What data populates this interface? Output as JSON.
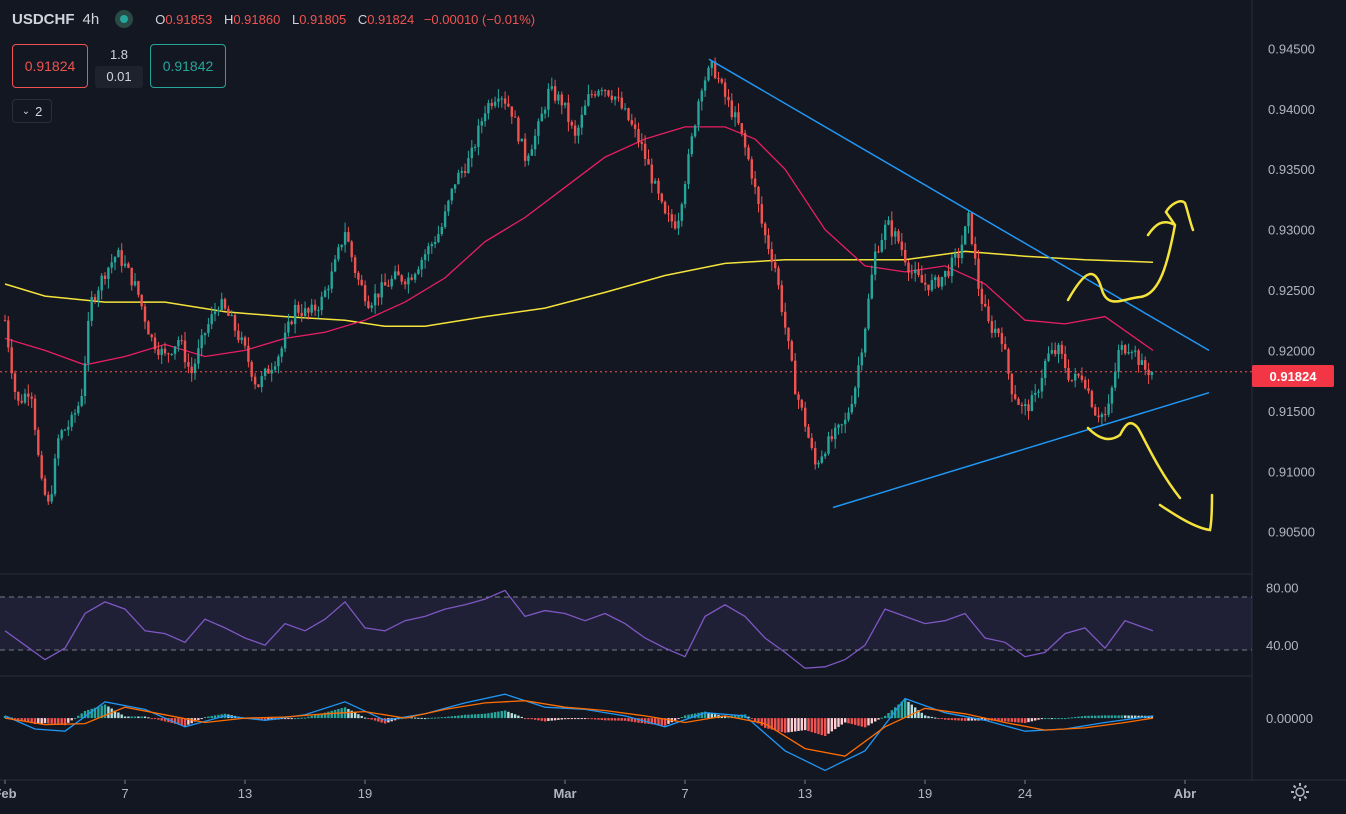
{
  "header": {
    "symbol": "USDCHF",
    "timeframe": "4h",
    "open_label": "O",
    "open": "0.91853",
    "high_label": "H",
    "high": "0.91860",
    "low_label": "L",
    "low": "0.91805",
    "close_label": "C",
    "close": "0.91824",
    "change": "−0.00010 (−0.01%)"
  },
  "trade": {
    "sell_price": "0.91824",
    "buy_price": "0.91842",
    "quantity": "1.8",
    "spread": "0.01"
  },
  "indicators_toggle": {
    "label": "2"
  },
  "colors": {
    "background": "#131722",
    "up": "#26a69a",
    "down": "#ef5350",
    "ma_fast": "#e91e63",
    "ma_slow": "#f5e33b",
    "trendline": "#2196f3",
    "annotation": "#f5e33b",
    "rsi": "#7e57c2",
    "macd": "#2196f3",
    "signal": "#ff6d00"
  },
  "chart_data": [
    {
      "type": "candlestick",
      "symbol": "USDCHF",
      "timeframe": "4h",
      "y_axis_ticks": [
        "0.94500",
        "0.94000",
        "0.93500",
        "0.93000",
        "0.92500",
        "0.92000",
        "0.91500",
        "0.91000",
        "0.90500"
      ],
      "ylim": [
        0.9015,
        0.949
      ],
      "last_price": "0.91824",
      "x_axis_ticks": [
        "Feb",
        "7",
        "13",
        "19",
        "Mar",
        "7",
        "13",
        "19",
        "24",
        "Abr"
      ],
      "x_axis_tick_days": [
        1,
        7,
        13,
        19,
        29,
        35,
        41,
        47,
        52,
        60
      ],
      "xlim": [
        1,
        63.6
      ],
      "close_path": [
        {
          "d": 1,
          "v": 0.9225
        },
        {
          "d": 1.6,
          "v": 0.9155
        },
        {
          "d": 2.3,
          "v": 0.917
        },
        {
          "d": 2.8,
          "v": 0.909
        },
        {
          "d": 3.2,
          "v": 0.907
        },
        {
          "d": 3.7,
          "v": 0.913
        },
        {
          "d": 4.3,
          "v": 0.914
        },
        {
          "d": 4.8,
          "v": 0.916
        },
        {
          "d": 5.3,
          "v": 0.924
        },
        {
          "d": 6,
          "v": 0.9265
        },
        {
          "d": 6.6,
          "v": 0.928
        },
        {
          "d": 7,
          "v": 0.927
        },
        {
          "d": 7.6,
          "v": 0.925
        },
        {
          "d": 8.3,
          "v": 0.921
        },
        {
          "d": 9,
          "v": 0.9195
        },
        {
          "d": 9.7,
          "v": 0.921
        },
        {
          "d": 10.3,
          "v": 0.918
        },
        {
          "d": 11,
          "v": 0.9215
        },
        {
          "d": 11.7,
          "v": 0.924
        },
        {
          "d": 12.3,
          "v": 0.9225
        },
        {
          "d": 13,
          "v": 0.92
        },
        {
          "d": 13.6,
          "v": 0.917
        },
        {
          "d": 14.2,
          "v": 0.9185
        },
        {
          "d": 14.8,
          "v": 0.92
        },
        {
          "d": 15.5,
          "v": 0.9235
        },
        {
          "d": 16.2,
          "v": 0.923
        },
        {
          "d": 16.8,
          "v": 0.924
        },
        {
          "d": 17.4,
          "v": 0.9265
        },
        {
          "d": 18,
          "v": 0.93
        },
        {
          "d": 18.6,
          "v": 0.926
        },
        {
          "d": 19.2,
          "v": 0.924
        },
        {
          "d": 19.8,
          "v": 0.925
        },
        {
          "d": 20.5,
          "v": 0.926
        },
        {
          "d": 21.2,
          "v": 0.926
        },
        {
          "d": 22,
          "v": 0.928
        },
        {
          "d": 22.8,
          "v": 0.93
        },
        {
          "d": 23.5,
          "v": 0.934
        },
        {
          "d": 24.3,
          "v": 0.936
        },
        {
          "d": 25,
          "v": 0.94
        },
        {
          "d": 25.7,
          "v": 0.9415
        },
        {
          "d": 26.3,
          "v": 0.94
        },
        {
          "d": 27,
          "v": 0.936
        },
        {
          "d": 27.6,
          "v": 0.938
        },
        {
          "d": 28.2,
          "v": 0.9415
        },
        {
          "d": 28.9,
          "v": 0.9405
        },
        {
          "d": 29.5,
          "v": 0.9375
        },
        {
          "d": 30.2,
          "v": 0.941
        },
        {
          "d": 30.8,
          "v": 0.942
        },
        {
          "d": 31.5,
          "v": 0.941
        },
        {
          "d": 32.2,
          "v": 0.939
        },
        {
          "d": 32.8,
          "v": 0.937
        },
        {
          "d": 33.4,
          "v": 0.934
        },
        {
          "d": 34,
          "v": 0.931
        },
        {
          "d": 34.6,
          "v": 0.9305
        },
        {
          "d": 35.2,
          "v": 0.936
        },
        {
          "d": 35.8,
          "v": 0.942
        },
        {
          "d": 36.4,
          "v": 0.9435
        },
        {
          "d": 37,
          "v": 0.941
        },
        {
          "d": 37.7,
          "v": 0.9385
        },
        {
          "d": 38.3,
          "v": 0.935
        },
        {
          "d": 38.9,
          "v": 0.93
        },
        {
          "d": 39.5,
          "v": 0.927
        },
        {
          "d": 40,
          "v": 0.922
        },
        {
          "d": 40.5,
          "v": 0.917
        },
        {
          "d": 41,
          "v": 0.914
        },
        {
          "d": 41.5,
          "v": 0.9105
        },
        {
          "d": 42,
          "v": 0.912
        },
        {
          "d": 42.5,
          "v": 0.913
        },
        {
          "d": 43,
          "v": 0.914
        },
        {
          "d": 43.5,
          "v": 0.917
        },
        {
          "d": 44,
          "v": 0.922
        },
        {
          "d": 44.5,
          "v": 0.928
        },
        {
          "d": 45.1,
          "v": 0.9305
        },
        {
          "d": 45.7,
          "v": 0.929
        },
        {
          "d": 46.3,
          "v": 0.9265
        },
        {
          "d": 46.9,
          "v": 0.9255
        },
        {
          "d": 47.5,
          "v": 0.9255
        },
        {
          "d": 48.1,
          "v": 0.9265
        },
        {
          "d": 48.7,
          "v": 0.928
        },
        {
          "d": 49.2,
          "v": 0.931
        },
        {
          "d": 49.7,
          "v": 0.925
        },
        {
          "d": 50.2,
          "v": 0.922
        },
        {
          "d": 50.8,
          "v": 0.9215
        },
        {
          "d": 51.3,
          "v": 0.917
        },
        {
          "d": 51.9,
          "v": 0.915
        },
        {
          "d": 52.5,
          "v": 0.916
        },
        {
          "d": 53.1,
          "v": 0.9195
        },
        {
          "d": 53.7,
          "v": 0.92
        },
        {
          "d": 54.3,
          "v": 0.9175
        },
        {
          "d": 54.9,
          "v": 0.918
        },
        {
          "d": 55.5,
          "v": 0.915
        },
        {
          "d": 56.1,
          "v": 0.9145
        },
        {
          "d": 56.7,
          "v": 0.92
        },
        {
          "d": 57.3,
          "v": 0.9205
        },
        {
          "d": 57.9,
          "v": 0.9185
        },
        {
          "d": 58.4,
          "v": 0.9182
        }
      ],
      "moving_average_fast": [
        {
          "d": 1,
          "v": 0.921
        },
        {
          "d": 3,
          "v": 0.92
        },
        {
          "d": 5,
          "v": 0.9188
        },
        {
          "d": 7,
          "v": 0.9195
        },
        {
          "d": 9,
          "v": 0.9205
        },
        {
          "d": 11,
          "v": 0.9195
        },
        {
          "d": 13,
          "v": 0.92
        },
        {
          "d": 15,
          "v": 0.921
        },
        {
          "d": 17,
          "v": 0.9215
        },
        {
          "d": 19,
          "v": 0.9225
        },
        {
          "d": 21,
          "v": 0.924
        },
        {
          "d": 23,
          "v": 0.926
        },
        {
          "d": 25,
          "v": 0.929
        },
        {
          "d": 27,
          "v": 0.931
        },
        {
          "d": 29,
          "v": 0.9335
        },
        {
          "d": 31,
          "v": 0.936
        },
        {
          "d": 33,
          "v": 0.9375
        },
        {
          "d": 35,
          "v": 0.9385
        },
        {
          "d": 37,
          "v": 0.9385
        },
        {
          "d": 38.5,
          "v": 0.9375
        },
        {
          "d": 40,
          "v": 0.935
        },
        {
          "d": 42,
          "v": 0.93
        },
        {
          "d": 44,
          "v": 0.927
        },
        {
          "d": 46,
          "v": 0.9265
        },
        {
          "d": 48,
          "v": 0.927
        },
        {
          "d": 50,
          "v": 0.9255
        },
        {
          "d": 52,
          "v": 0.9225
        },
        {
          "d": 54,
          "v": 0.9222
        },
        {
          "d": 56,
          "v": 0.9228
        },
        {
          "d": 58.4,
          "v": 0.92
        }
      ],
      "moving_average_slow": [
        {
          "d": 1,
          "v": 0.9255
        },
        {
          "d": 3,
          "v": 0.9245
        },
        {
          "d": 6,
          "v": 0.924
        },
        {
          "d": 9,
          "v": 0.924
        },
        {
          "d": 12,
          "v": 0.9232
        },
        {
          "d": 15,
          "v": 0.9228
        },
        {
          "d": 18,
          "v": 0.9225
        },
        {
          "d": 20,
          "v": 0.922
        },
        {
          "d": 22,
          "v": 0.922
        },
        {
          "d": 25,
          "v": 0.9228
        },
        {
          "d": 28,
          "v": 0.9235
        },
        {
          "d": 31,
          "v": 0.9248
        },
        {
          "d": 34,
          "v": 0.9262
        },
        {
          "d": 37,
          "v": 0.9272
        },
        {
          "d": 40,
          "v": 0.9275
        },
        {
          "d": 43,
          "v": 0.9275
        },
        {
          "d": 46,
          "v": 0.9275
        },
        {
          "d": 49,
          "v": 0.9282
        },
        {
          "d": 52,
          "v": 0.9278
        },
        {
          "d": 55,
          "v": 0.9275
        },
        {
          "d": 58.4,
          "v": 0.9273
        }
      ],
      "trendlines": [
        {
          "from": {
            "d": 36.2,
            "v": 0.9441
          },
          "to": {
            "d": 61.2,
            "v": 0.92
          }
        },
        {
          "from": {
            "d": 42.4,
            "v": 0.907
          },
          "to": {
            "d": 61.2,
            "v": 0.9165
          }
        }
      ]
    },
    {
      "type": "line",
      "name": "RSI",
      "y_axis_ticks": [
        "80.00",
        "40.00"
      ],
      "ylim": [
        20,
        88
      ],
      "band": [
        70,
        30
      ],
      "values": [
        {
          "d": 1,
          "v": 50
        },
        {
          "d": 2,
          "v": 40
        },
        {
          "d": 3,
          "v": 30
        },
        {
          "d": 4,
          "v": 38
        },
        {
          "d": 5,
          "v": 62
        },
        {
          "d": 6,
          "v": 70
        },
        {
          "d": 7,
          "v": 65
        },
        {
          "d": 8,
          "v": 50
        },
        {
          "d": 9,
          "v": 48
        },
        {
          "d": 10,
          "v": 42
        },
        {
          "d": 11,
          "v": 58
        },
        {
          "d": 12,
          "v": 52
        },
        {
          "d": 13,
          "v": 45
        },
        {
          "d": 14,
          "v": 40
        },
        {
          "d": 15,
          "v": 55
        },
        {
          "d": 16,
          "v": 50
        },
        {
          "d": 17,
          "v": 58
        },
        {
          "d": 18,
          "v": 70
        },
        {
          "d": 19,
          "v": 52
        },
        {
          "d": 20,
          "v": 50
        },
        {
          "d": 21,
          "v": 57
        },
        {
          "d": 22,
          "v": 60
        },
        {
          "d": 23,
          "v": 65
        },
        {
          "d": 24,
          "v": 68
        },
        {
          "d": 25,
          "v": 72
        },
        {
          "d": 26,
          "v": 78
        },
        {
          "d": 27,
          "v": 60
        },
        {
          "d": 28,
          "v": 64
        },
        {
          "d": 29,
          "v": 62
        },
        {
          "d": 30,
          "v": 57
        },
        {
          "d": 31,
          "v": 62
        },
        {
          "d": 32,
          "v": 55
        },
        {
          "d": 33,
          "v": 45
        },
        {
          "d": 34,
          "v": 38
        },
        {
          "d": 35,
          "v": 32
        },
        {
          "d": 36,
          "v": 60
        },
        {
          "d": 37,
          "v": 68
        },
        {
          "d": 38,
          "v": 60
        },
        {
          "d": 39,
          "v": 45
        },
        {
          "d": 40,
          "v": 35
        },
        {
          "d": 41,
          "v": 24
        },
        {
          "d": 42,
          "v": 25
        },
        {
          "d": 43,
          "v": 30
        },
        {
          "d": 44,
          "v": 40
        },
        {
          "d": 45,
          "v": 65
        },
        {
          "d": 46,
          "v": 60
        },
        {
          "d": 47,
          "v": 55
        },
        {
          "d": 48,
          "v": 57
        },
        {
          "d": 49,
          "v": 62
        },
        {
          "d": 50,
          "v": 45
        },
        {
          "d": 51,
          "v": 42
        },
        {
          "d": 52,
          "v": 32
        },
        {
          "d": 53,
          "v": 35
        },
        {
          "d": 54,
          "v": 48
        },
        {
          "d": 55,
          "v": 52
        },
        {
          "d": 56,
          "v": 38
        },
        {
          "d": 57,
          "v": 57
        },
        {
          "d": 58,
          "v": 52
        },
        {
          "d": 58.4,
          "v": 50
        }
      ]
    },
    {
      "type": "bar",
      "name": "MACD",
      "y_axis_ticks": [
        "0.00000"
      ],
      "ylim": [
        -0.0055,
        0.0035
      ],
      "macd": [
        {
          "d": 1,
          "v": 0.0002
        },
        {
          "d": 2.5,
          "v": -0.001
        },
        {
          "d": 4,
          "v": -0.0012
        },
        {
          "d": 6,
          "v": 0.0015
        },
        {
          "d": 8,
          "v": 0.0008
        },
        {
          "d": 10,
          "v": -0.0008
        },
        {
          "d": 12,
          "v": 0.0002
        },
        {
          "d": 14,
          "v": -0.0002
        },
        {
          "d": 16,
          "v": 0.0003
        },
        {
          "d": 18,
          "v": 0.0015
        },
        {
          "d": 20,
          "v": -0.0002
        },
        {
          "d": 22,
          "v": 0.0004
        },
        {
          "d": 24,
          "v": 0.0014
        },
        {
          "d": 26,
          "v": 0.0022
        },
        {
          "d": 28,
          "v": 0.001
        },
        {
          "d": 30,
          "v": 0.0008
        },
        {
          "d": 32,
          "v": 0.0002
        },
        {
          "d": 34,
          "v": -0.0008
        },
        {
          "d": 36,
          "v": 0.0005
        },
        {
          "d": 38,
          "v": 0.0002
        },
        {
          "d": 40,
          "v": -0.003
        },
        {
          "d": 42,
          "v": -0.0048
        },
        {
          "d": 44,
          "v": -0.003
        },
        {
          "d": 46,
          "v": 0.0018
        },
        {
          "d": 48,
          "v": 0.0005
        },
        {
          "d": 50,
          "v": -0.0002
        },
        {
          "d": 52,
          "v": -0.0012
        },
        {
          "d": 54,
          "v": -0.001
        },
        {
          "d": 56,
          "v": -0.0004
        },
        {
          "d": 58.4,
          "v": 0.0002
        }
      ],
      "signal": [
        {
          "d": 1,
          "v": 0.0
        },
        {
          "d": 3,
          "v": -0.0006
        },
        {
          "d": 5,
          "v": -0.0005
        },
        {
          "d": 7,
          "v": 0.001
        },
        {
          "d": 9,
          "v": 0.0003
        },
        {
          "d": 11,
          "v": -0.0004
        },
        {
          "d": 13,
          "v": 0.0
        },
        {
          "d": 15,
          "v": 0.0001
        },
        {
          "d": 17,
          "v": 0.0004
        },
        {
          "d": 19,
          "v": 0.0006
        },
        {
          "d": 21,
          "v": 0.0
        },
        {
          "d": 23,
          "v": 0.0008
        },
        {
          "d": 25,
          "v": 0.0014
        },
        {
          "d": 27,
          "v": 0.0016
        },
        {
          "d": 29,
          "v": 0.001
        },
        {
          "d": 31,
          "v": 0.0007
        },
        {
          "d": 33,
          "v": 0.0002
        },
        {
          "d": 35,
          "v": -0.0004
        },
        {
          "d": 37,
          "v": 0.0002
        },
        {
          "d": 39,
          "v": -0.0005
        },
        {
          "d": 41,
          "v": -0.0028
        },
        {
          "d": 43,
          "v": -0.0035
        },
        {
          "d": 45,
          "v": -0.0008
        },
        {
          "d": 47,
          "v": 0.0009
        },
        {
          "d": 49,
          "v": 0.0004
        },
        {
          "d": 51,
          "v": -0.0004
        },
        {
          "d": 53,
          "v": -0.0011
        },
        {
          "d": 55,
          "v": -0.0009
        },
        {
          "d": 57,
          "v": -0.0004
        },
        {
          "d": 58.4,
          "v": 0.0
        }
      ]
    }
  ]
}
